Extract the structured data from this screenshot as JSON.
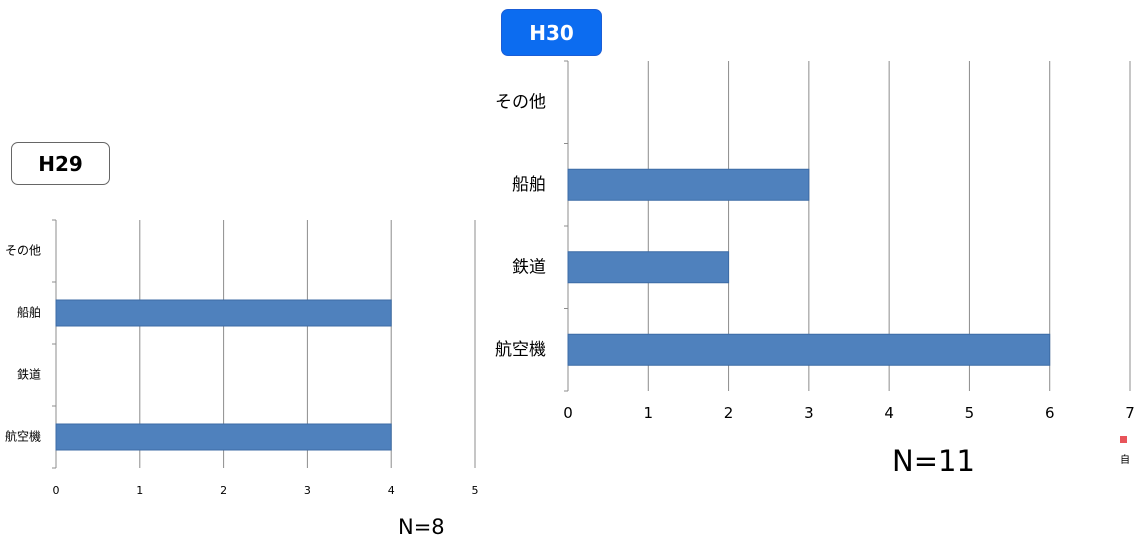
{
  "chart_data": [
    {
      "type": "bar",
      "orientation": "horizontal",
      "title": "H29",
      "categories": [
        "航空機",
        "鉄道",
        "船舶",
        "その他"
      ],
      "values": [
        4,
        0,
        4,
        0
      ],
      "xlim": [
        0,
        5
      ],
      "xticks": [
        0,
        1,
        2,
        3,
        4,
        5
      ],
      "grid": true,
      "annotation": "N=8",
      "colors": {
        "bar": "#4f81bd"
      }
    },
    {
      "type": "bar",
      "orientation": "horizontal",
      "title": "H30",
      "categories": [
        "航空機",
        "鉄道",
        "船舶",
        "その他"
      ],
      "values": [
        6,
        2,
        3,
        0
      ],
      "xlim": [
        0,
        7
      ],
      "xticks": [
        0,
        1,
        2,
        3,
        4,
        5,
        6,
        7
      ],
      "grid": true,
      "annotation": "N=11",
      "legend_text": "自",
      "colors": {
        "bar": "#4f81bd",
        "legend_swatch": "#e8545a"
      }
    }
  ]
}
